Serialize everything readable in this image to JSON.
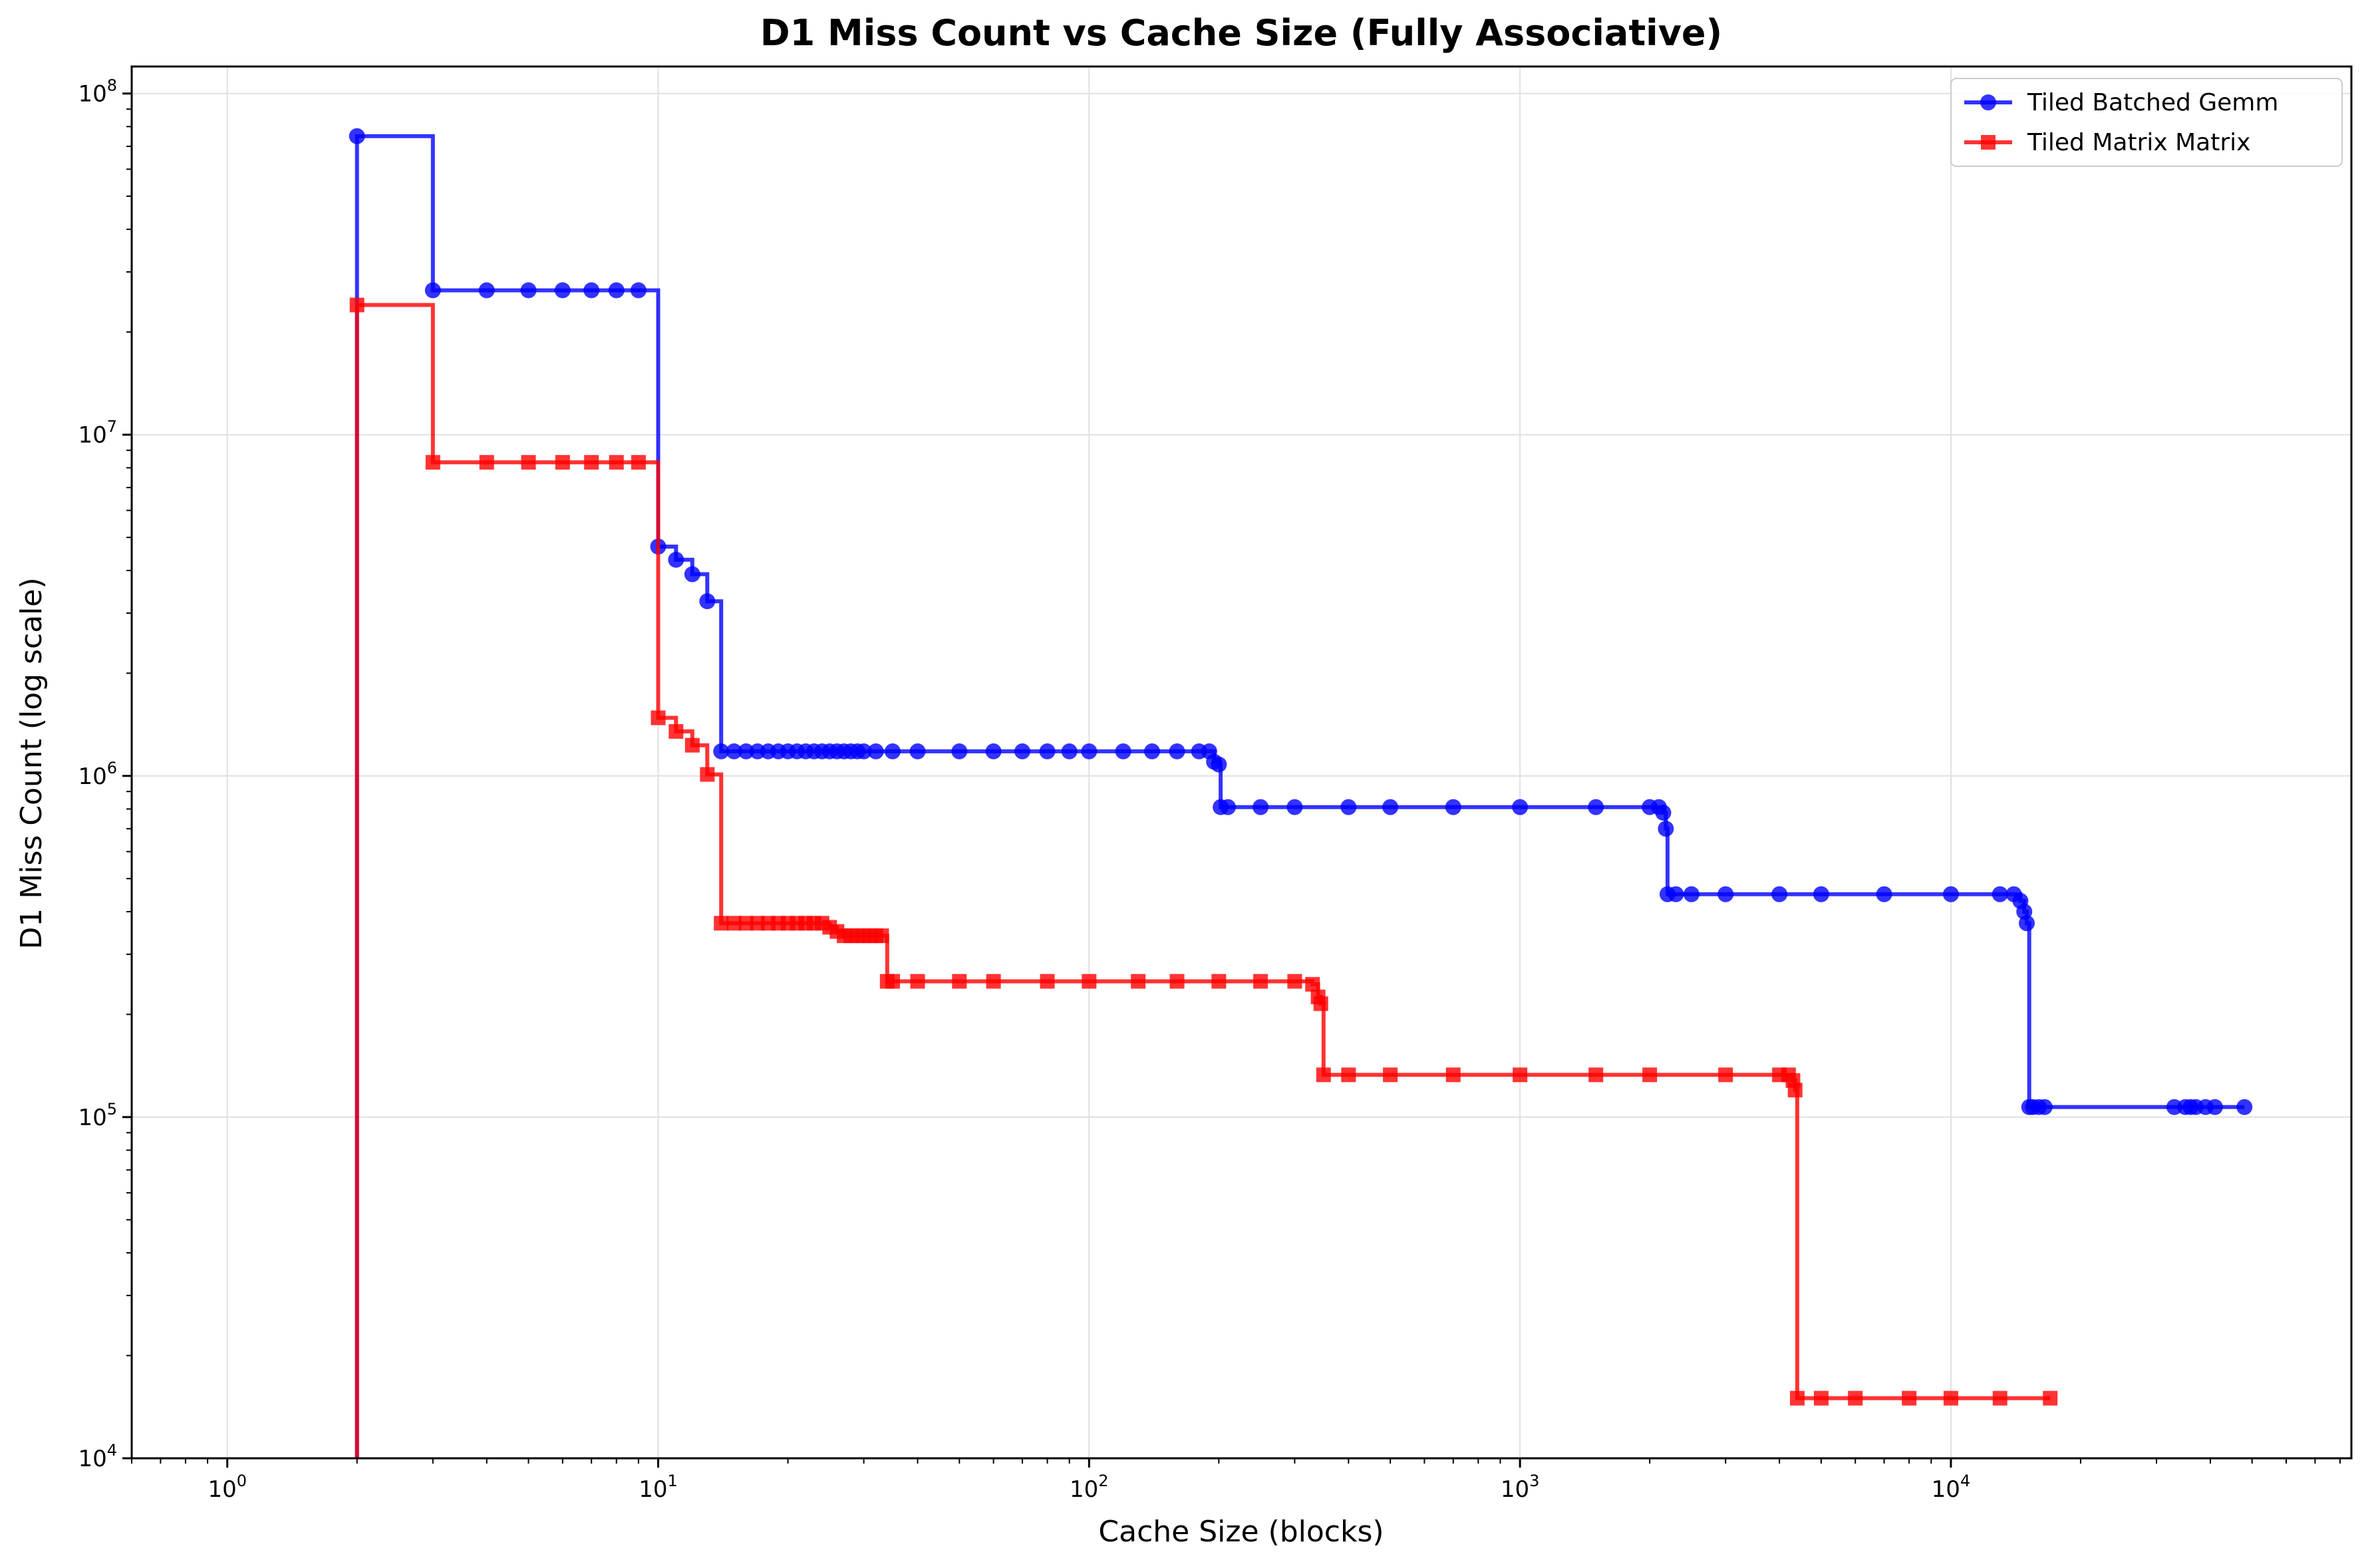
{
  "chart_data": {
    "type": "line",
    "title": "D1 Miss Count vs Cache Size (Fully Associative)",
    "xlabel": "Cache Size (blocks)",
    "ylabel": "D1 Miss Count (log scale)",
    "xscale": "log",
    "yscale": "log",
    "xlim": [
      0.6,
      85000
    ],
    "ylim": [
      10000,
      120000000
    ],
    "x_ticks": [
      {
        "value": 1,
        "base": "10",
        "exp": "0"
      },
      {
        "value": 10,
        "base": "10",
        "exp": "1"
      },
      {
        "value": 100,
        "base": "10",
        "exp": "2"
      },
      {
        "value": 1000,
        "base": "10",
        "exp": "3"
      },
      {
        "value": 10000,
        "base": "10",
        "exp": "4"
      }
    ],
    "y_ticks": [
      {
        "value": 10000,
        "base": "10",
        "exp": "4"
      },
      {
        "value": 100000,
        "base": "10",
        "exp": "5"
      },
      {
        "value": 1000000,
        "base": "10",
        "exp": "6"
      },
      {
        "value": 10000000,
        "base": "10",
        "exp": "7"
      },
      {
        "value": 100000000,
        "base": "10",
        "exp": "8"
      }
    ],
    "grid": true,
    "legend_position": "top-right",
    "series": [
      {
        "name": "Tiled Batched Gemm",
        "color": "#0000ff",
        "marker": "circle",
        "drawstyle": "steps-post",
        "x": [
          2,
          3,
          4,
          5,
          6,
          7,
          8,
          9,
          10,
          11,
          12,
          13,
          14,
          15,
          16,
          17,
          18,
          19,
          20,
          21,
          22,
          23,
          24,
          25,
          26,
          27,
          28,
          29,
          30,
          32,
          35,
          40,
          50,
          60,
          70,
          80,
          90,
          100,
          120,
          140,
          160,
          180,
          190,
          195,
          200,
          202,
          210,
          250,
          300,
          400,
          500,
          700,
          1000,
          1500,
          2000,
          2100,
          2150,
          2180,
          2200,
          2300,
          2500,
          3000,
          4000,
          5000,
          7000,
          10000,
          13000,
          14000,
          14500,
          14800,
          15000,
          15200,
          15500,
          16000,
          16500,
          33000,
          35000,
          36000,
          37000,
          39000,
          41000,
          48000
        ],
        "y": [
          75000000,
          26500000,
          26500000,
          26500000,
          26500000,
          26500000,
          26500000,
          26500000,
          4700000,
          4300000,
          3900000,
          3250000,
          1180000,
          1180000,
          1180000,
          1180000,
          1180000,
          1180000,
          1180000,
          1180000,
          1180000,
          1180000,
          1180000,
          1180000,
          1180000,
          1180000,
          1180000,
          1180000,
          1180000,
          1180000,
          1180000,
          1180000,
          1180000,
          1180000,
          1180000,
          1180000,
          1180000,
          1180000,
          1180000,
          1180000,
          1180000,
          1180000,
          1180000,
          1100000,
          1080000,
          810000,
          810000,
          810000,
          810000,
          810000,
          810000,
          810000,
          810000,
          810000,
          810000,
          810000,
          780000,
          700000,
          450000,
          450000,
          450000,
          450000,
          450000,
          450000,
          450000,
          450000,
          450000,
          450000,
          430000,
          400000,
          370000,
          107000,
          107000,
          107000,
          107000,
          107000,
          107000,
          107000,
          107000,
          107000,
          107000,
          107000
        ]
      },
      {
        "name": "Tiled Matrix Matrix",
        "color": "#ff0000",
        "marker": "square",
        "drawstyle": "steps-post",
        "x": [
          2,
          3,
          4,
          5,
          6,
          7,
          8,
          9,
          10,
          11,
          12,
          13,
          14,
          15,
          16,
          17,
          18,
          19,
          20,
          21,
          22,
          23,
          24,
          25,
          26,
          27,
          28,
          29,
          30,
          31,
          32,
          33,
          34,
          35,
          40,
          50,
          60,
          80,
          100,
          130,
          160,
          200,
          250,
          300,
          330,
          340,
          345,
          350,
          400,
          500,
          700,
          1000,
          1500,
          2000,
          3000,
          4000,
          4200,
          4300,
          4350,
          4400,
          5000,
          6000,
          8000,
          10000,
          13000,
          17000
        ],
        "y": [
          24000000,
          8300000,
          8300000,
          8300000,
          8300000,
          8300000,
          8300000,
          8300000,
          1480000,
          1350000,
          1230000,
          1010000,
          370000,
          370000,
          370000,
          370000,
          370000,
          370000,
          370000,
          370000,
          370000,
          370000,
          370000,
          360000,
          350000,
          340000,
          340000,
          340000,
          340000,
          340000,
          340000,
          340000,
          250000,
          250000,
          250000,
          250000,
          250000,
          250000,
          250000,
          250000,
          250000,
          250000,
          250000,
          250000,
          245000,
          225000,
          215000,
          133000,
          133000,
          133000,
          133000,
          133000,
          133000,
          133000,
          133000,
          133000,
          133000,
          128000,
          120000,
          15000,
          15000,
          15000,
          15000,
          15000,
          15000,
          15000
        ]
      }
    ]
  }
}
